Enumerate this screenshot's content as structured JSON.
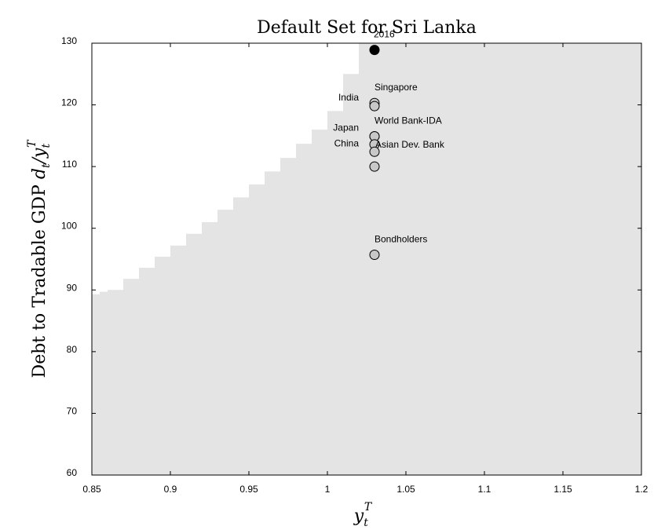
{
  "chart_data": {
    "type": "scatter",
    "title": "Default Set for Sri Lanka",
    "xlabel": "y_t^T",
    "ylabel": "Debt to Tradable GDP d_t/y_t^T",
    "xlim": [
      0.85,
      1.2
    ],
    "ylim": [
      60,
      130
    ],
    "x_ticks": [
      "0.85",
      "0.9",
      "0.95",
      "1",
      "1.05",
      "1.1",
      "1.15",
      "1.2"
    ],
    "y_ticks": [
      "60",
      "70",
      "80",
      "90",
      "100",
      "110",
      "120",
      "130"
    ],
    "grid": false,
    "colors": {
      "default_region": "#e4e4e4",
      "filled_marker": "#000000",
      "open_marker": "#c8c8c8"
    },
    "default_region_boundary": [
      [
        0.85,
        89.3
      ],
      [
        0.855,
        89.7
      ],
      [
        0.86,
        90.0
      ],
      [
        0.87,
        91.8
      ],
      [
        0.88,
        93.6
      ],
      [
        0.89,
        95.4
      ],
      [
        0.9,
        97.2
      ],
      [
        0.91,
        99.1
      ],
      [
        0.92,
        101.0
      ],
      [
        0.93,
        103.0
      ],
      [
        0.94,
        105.0
      ],
      [
        0.95,
        107.1
      ],
      [
        0.96,
        109.2
      ],
      [
        0.97,
        111.4
      ],
      [
        0.98,
        113.7
      ],
      [
        0.99,
        116.0
      ],
      [
        1.0,
        119.0
      ],
      [
        1.01,
        125.0
      ],
      [
        1.02,
        130.0
      ]
    ],
    "points": [
      {
        "name": "2016",
        "x": 1.03,
        "y": 128.9,
        "marker": "filled",
        "label_pos": "above"
      },
      {
        "name": "Singapore",
        "x": 1.03,
        "y": 120.3,
        "marker": "open",
        "label_pos": "above-right"
      },
      {
        "name": "India",
        "x": 1.03,
        "y": 119.8,
        "marker": "open",
        "label_pos": "left"
      },
      {
        "name": "World Bank-IDA",
        "x": 1.03,
        "y": 114.9,
        "marker": "open",
        "label_pos": "above-right"
      },
      {
        "name": "Japan",
        "x": 1.03,
        "y": 114.9,
        "marker": "open",
        "label_pos": "left"
      },
      {
        "name": "Asian Dev. Bank",
        "x": 1.03,
        "y": 113.6,
        "marker": "open",
        "label_pos": "right"
      },
      {
        "name": "China",
        "x": 1.03,
        "y": 112.4,
        "marker": "open",
        "label_pos": "left"
      },
      {
        "name": "",
        "x": 1.03,
        "y": 110.0,
        "marker": "open",
        "label_pos": "none"
      },
      {
        "name": "Bondholders",
        "x": 1.03,
        "y": 95.7,
        "marker": "open",
        "label_pos": "above-right"
      }
    ]
  }
}
